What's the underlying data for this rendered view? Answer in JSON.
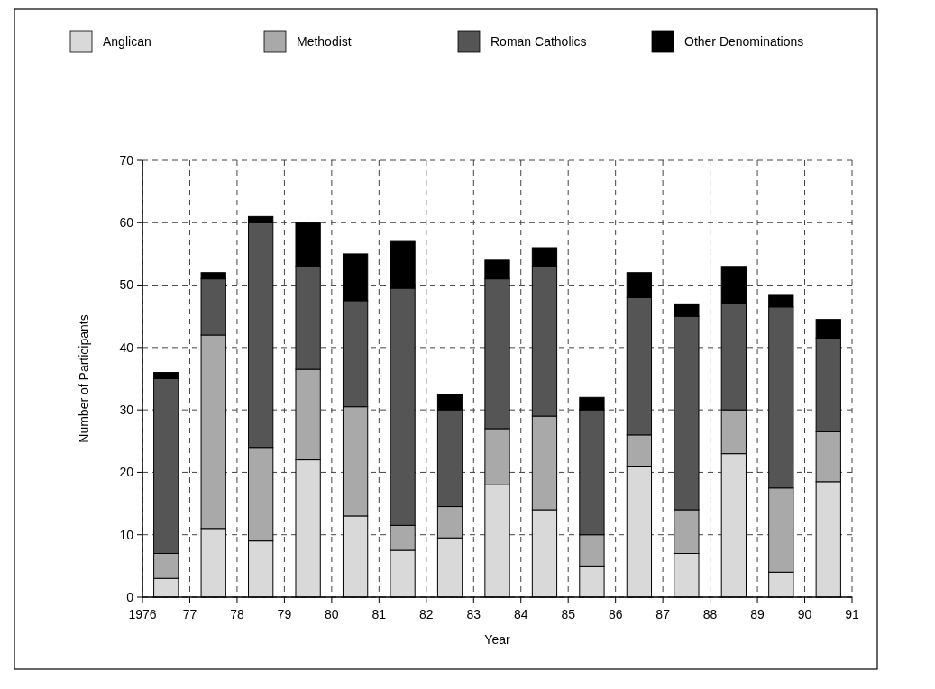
{
  "chart_data": {
    "type": "bar",
    "stacked": true,
    "xlabel": "Year",
    "ylabel": "Number of Participants",
    "x": [
      1976.5,
      1977.5,
      1978.5,
      1979.5,
      1980.5,
      1981.5,
      1982.5,
      1983.5,
      1984.5,
      1985.5,
      1986.5,
      1987.5,
      1988.5,
      1989.5,
      1990.5
    ],
    "xlim": [
      1976,
      1991
    ],
    "xticks": [
      1976,
      {
        "value": 1977,
        "label": "77"
      },
      {
        "value": 1978,
        "label": "78"
      },
      {
        "value": 1979,
        "label": "79"
      },
      {
        "value": 1980,
        "label": "80"
      },
      {
        "value": 1981,
        "label": "81"
      },
      {
        "value": 1982,
        "label": "82"
      },
      {
        "value": 1983,
        "label": "83"
      },
      {
        "value": 1984,
        "label": "84"
      },
      {
        "value": 1985,
        "label": "85"
      },
      {
        "value": 1986,
        "label": "86"
      },
      {
        "value": 1987,
        "label": "87"
      },
      {
        "value": 1988,
        "label": "88"
      },
      {
        "value": 1989,
        "label": "89"
      },
      {
        "value": 1990,
        "label": "90"
      },
      {
        "value": 1991,
        "label": "91"
      }
    ],
    "ylim": [
      0,
      70
    ],
    "yticks": [
      0,
      10,
      20,
      30,
      40,
      50,
      60,
      70
    ],
    "grid": true,
    "legend": "top",
    "series": [
      {
        "name": "Anglican",
        "color": "#d9d9d9",
        "values": [
          3,
          11,
          9,
          22,
          13,
          7.5,
          9.5,
          18,
          14,
          5,
          21,
          7,
          23,
          4,
          18.5
        ]
      },
      {
        "name": "Methodist",
        "color": "#a9a9a9",
        "values": [
          4,
          31,
          15,
          14.5,
          17.5,
          4,
          5,
          9,
          15,
          5,
          5,
          7,
          7,
          13.5,
          8
        ]
      },
      {
        "name": "Roman Catholics",
        "color": "#555555",
        "values": [
          28,
          9,
          36,
          16.5,
          17,
          38,
          15.5,
          24,
          24,
          20,
          22,
          31,
          17,
          29,
          15
        ]
      },
      {
        "name": "Other Denominations",
        "color": "#000000",
        "values": [
          1,
          1,
          1,
          7,
          7.5,
          7.5,
          2.5,
          3,
          3,
          2,
          4,
          2,
          6,
          2,
          3
        ]
      }
    ]
  }
}
